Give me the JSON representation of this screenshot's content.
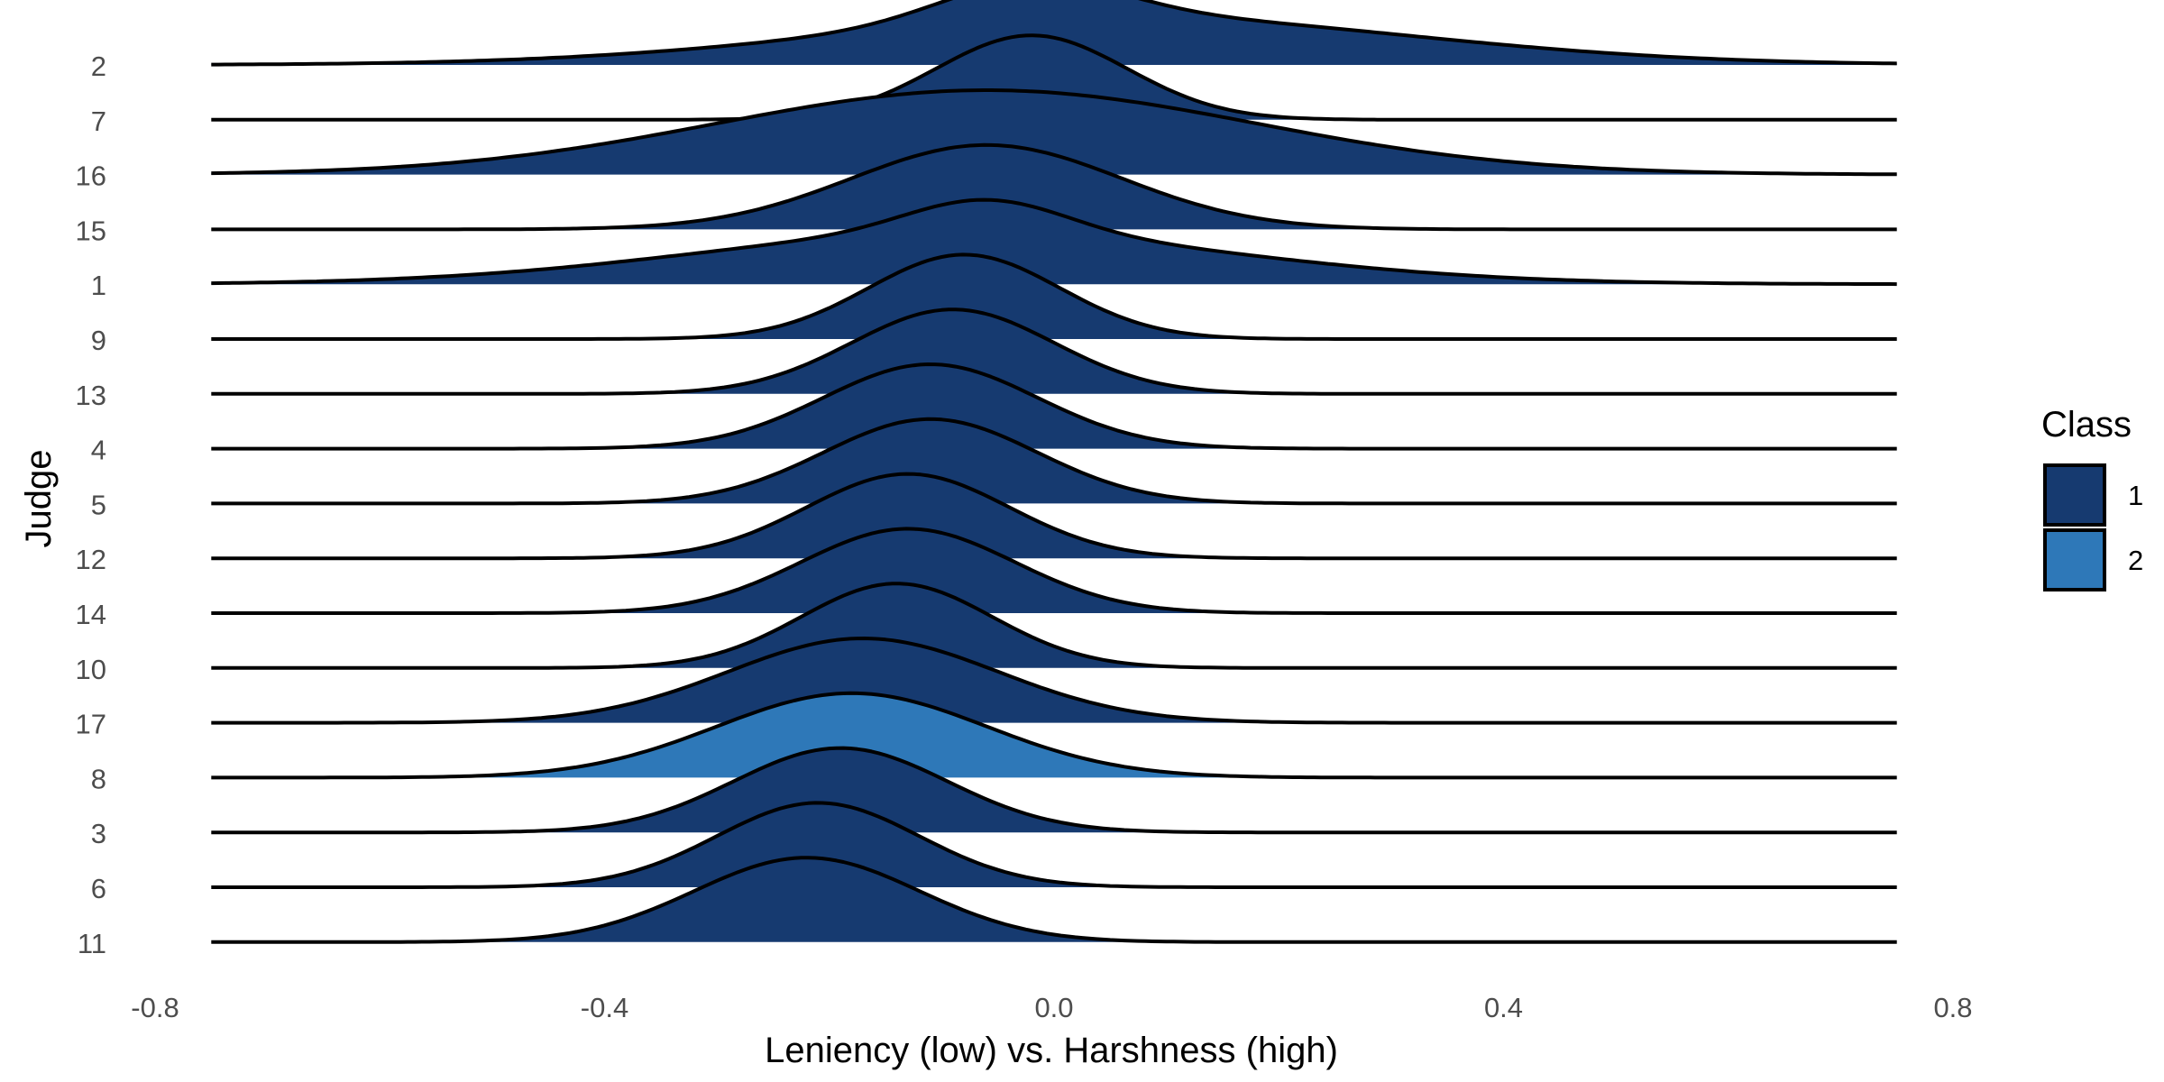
{
  "chart_data": {
    "type": "ridgeline",
    "xlabel": "Leniency (low) vs. Harshness (high)",
    "ylabel": "Judge",
    "xlim": [
      -0.8,
      0.8
    ],
    "x_range": [
      -0.75,
      0.75
    ],
    "x_ticks": [
      "-0.8",
      "-0.4",
      "0.0",
      "0.4",
      "0.8"
    ],
    "x_tick_values": [
      -0.8,
      -0.4,
      0.0,
      0.4,
      0.8
    ],
    "grid": false,
    "legend": {
      "title": "Class",
      "position": "right",
      "entries": [
        {
          "label": "1",
          "color": "#163a70"
        },
        {
          "label": "2",
          "color": "#2e78b8"
        }
      ]
    },
    "series": [
      {
        "judge": "2",
        "class": "1",
        "components": [
          {
            "mu": 0.06,
            "sigma": 0.26,
            "w": 0.55
          },
          {
            "mu": -0.02,
            "sigma": 0.08,
            "w": 0.45
          }
        ]
      },
      {
        "judge": "7",
        "class": "1",
        "components": [
          {
            "mu": -0.02,
            "sigma": 0.085,
            "w": 1
          }
        ]
      },
      {
        "judge": "16",
        "class": "1",
        "components": [
          {
            "mu": -0.06,
            "sigma": 0.24,
            "w": 1
          }
        ]
      },
      {
        "judge": "15",
        "class": "1",
        "components": [
          {
            "mu": -0.06,
            "sigma": 0.12,
            "w": 1
          }
        ]
      },
      {
        "judge": "1",
        "class": "1",
        "components": [
          {
            "mu": -0.08,
            "sigma": 0.24,
            "w": 0.6
          },
          {
            "mu": -0.06,
            "sigma": 0.07,
            "w": 0.4
          }
        ]
      },
      {
        "judge": "9",
        "class": "1",
        "components": [
          {
            "mu": -0.08,
            "sigma": 0.085,
            "w": 1
          }
        ]
      },
      {
        "judge": "13",
        "class": "1",
        "components": [
          {
            "mu": -0.09,
            "sigma": 0.09,
            "w": 1
          }
        ]
      },
      {
        "judge": "4",
        "class": "1",
        "components": [
          {
            "mu": -0.11,
            "sigma": 0.095,
            "w": 1
          }
        ]
      },
      {
        "judge": "5",
        "class": "1",
        "components": [
          {
            "mu": -0.11,
            "sigma": 0.095,
            "w": 1
          }
        ]
      },
      {
        "judge": "12",
        "class": "1",
        "components": [
          {
            "mu": -0.13,
            "sigma": 0.09,
            "w": 1
          }
        ]
      },
      {
        "judge": "14",
        "class": "1",
        "components": [
          {
            "mu": -0.13,
            "sigma": 0.095,
            "w": 1
          }
        ]
      },
      {
        "judge": "10",
        "class": "1",
        "components": [
          {
            "mu": -0.14,
            "sigma": 0.085,
            "w": 1
          }
        ]
      },
      {
        "judge": "17",
        "class": "1",
        "components": [
          {
            "mu": -0.17,
            "sigma": 0.12,
            "w": 1
          }
        ]
      },
      {
        "judge": "8",
        "class": "2",
        "components": [
          {
            "mu": -0.18,
            "sigma": 0.12,
            "w": 1
          }
        ]
      },
      {
        "judge": "3",
        "class": "1",
        "components": [
          {
            "mu": -0.19,
            "sigma": 0.095,
            "w": 1
          }
        ]
      },
      {
        "judge": "6",
        "class": "1",
        "components": [
          {
            "mu": -0.21,
            "sigma": 0.09,
            "w": 1
          }
        ]
      },
      {
        "judge": "11",
        "class": "1",
        "components": [
          {
            "mu": -0.22,
            "sigma": 0.1,
            "w": 1
          }
        ]
      }
    ]
  }
}
